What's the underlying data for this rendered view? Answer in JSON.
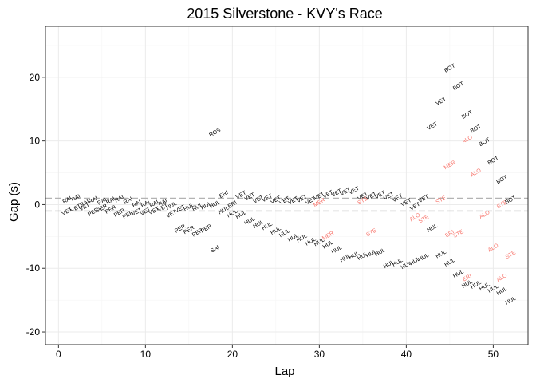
{
  "chart_data": {
    "type": "scatter",
    "title": "2015 Silverstone - KVY's Race",
    "xlabel": "Lap",
    "ylabel": "Gap (s)",
    "xlim": [
      -1.5,
      54
    ],
    "ylim": [
      -22,
      28
    ],
    "x_ticks": [
      0,
      10,
      20,
      30,
      40,
      50
    ],
    "y_ticks": [
      -20,
      -10,
      0,
      10,
      20
    ],
    "reference_lines": [
      1,
      -1
    ],
    "grid": true,
    "label_rotation": -30,
    "colors": {
      "normal": "#000000",
      "highlight": "#F8766D",
      "refline": "#b3b3b3",
      "grid_major": "#ebebeb",
      "grid_minor": "#f5f5f5",
      "panel_border": "#333333"
    },
    "points": [
      {
        "lap": 1,
        "gap": 0.7,
        "driver": "RAI",
        "highlight": false
      },
      {
        "lap": 1,
        "gap": -1.1,
        "driver": "VET",
        "highlight": false
      },
      {
        "lap": 2,
        "gap": 1.0,
        "driver": "RAI",
        "highlight": false
      },
      {
        "lap": 2,
        "gap": -0.6,
        "driver": "VET",
        "highlight": false
      },
      {
        "lap": 3,
        "gap": 0.2,
        "driver": "RAI",
        "highlight": false
      },
      {
        "lap": 3,
        "gap": -0.4,
        "driver": "VET",
        "highlight": false
      },
      {
        "lap": 4,
        "gap": 0.7,
        "driver": "RAI",
        "highlight": false
      },
      {
        "lap": 4,
        "gap": -1.2,
        "driver": "PER",
        "highlight": false
      },
      {
        "lap": 5,
        "gap": 0.5,
        "driver": "RAI",
        "highlight": false
      },
      {
        "lap": 5,
        "gap": -0.6,
        "driver": "PER",
        "highlight": false
      },
      {
        "lap": 6,
        "gap": 0.6,
        "driver": "RAI",
        "highlight": false
      },
      {
        "lap": 6,
        "gap": -0.8,
        "driver": "PER",
        "highlight": false
      },
      {
        "lap": 7,
        "gap": 0.9,
        "driver": "RAI",
        "highlight": false
      },
      {
        "lap": 7,
        "gap": -1.3,
        "driver": "PER",
        "highlight": false
      },
      {
        "lap": 8,
        "gap": 0.6,
        "driver": "RAI",
        "highlight": false
      },
      {
        "lap": 8,
        "gap": -1.6,
        "driver": "PER",
        "highlight": false
      },
      {
        "lap": 9,
        "gap": 0.1,
        "driver": "RAI",
        "highlight": false
      },
      {
        "lap": 9,
        "gap": -1.2,
        "driver": "VET",
        "highlight": false
      },
      {
        "lap": 10,
        "gap": 0.1,
        "driver": "RAI",
        "highlight": false
      },
      {
        "lap": 10,
        "gap": -1.1,
        "driver": "VET",
        "highlight": false
      },
      {
        "lap": 11,
        "gap": 0.1,
        "driver": "RAI",
        "highlight": false
      },
      {
        "lap": 11,
        "gap": -1.0,
        "driver": "VET",
        "highlight": false
      },
      {
        "lap": 12,
        "gap": 0.3,
        "driver": "RAI",
        "highlight": false
      },
      {
        "lap": 12,
        "gap": -0.5,
        "driver": "VET",
        "highlight": false
      },
      {
        "lap": 13,
        "gap": -0.2,
        "driver": "HUL",
        "highlight": false
      },
      {
        "lap": 13,
        "gap": -1.5,
        "driver": "VET",
        "highlight": false
      },
      {
        "lap": 14,
        "gap": -0.7,
        "driver": "VET",
        "highlight": false
      },
      {
        "lap": 14,
        "gap": -3.8,
        "driver": "PER",
        "highlight": false
      },
      {
        "lap": 15,
        "gap": -0.4,
        "driver": "HUL",
        "highlight": false
      },
      {
        "lap": 15,
        "gap": -4.0,
        "driver": "PER",
        "highlight": false
      },
      {
        "lap": 16,
        "gap": -0.4,
        "driver": "HUL",
        "highlight": false
      },
      {
        "lap": 16,
        "gap": -4.4,
        "driver": "PER",
        "highlight": false
      },
      {
        "lap": 17,
        "gap": -0.2,
        "driver": "HUL",
        "highlight": false
      },
      {
        "lap": 17,
        "gap": -3.8,
        "driver": "PER",
        "highlight": false
      },
      {
        "lap": 18,
        "gap": 11.3,
        "driver": "ROS",
        "highlight": false
      },
      {
        "lap": 18,
        "gap": 0.0,
        "driver": "HUL",
        "highlight": false
      },
      {
        "lap": 18,
        "gap": -7.0,
        "driver": "SAI",
        "highlight": false
      },
      {
        "lap": 19,
        "gap": 1.6,
        "driver": "ERI",
        "highlight": false
      },
      {
        "lap": 19,
        "gap": -0.9,
        "driver": "HUL",
        "highlight": false
      },
      {
        "lap": 20,
        "gap": 0.0,
        "driver": "ERI",
        "highlight": false
      },
      {
        "lap": 20,
        "gap": -1.4,
        "driver": "HUL",
        "highlight": false
      },
      {
        "lap": 21,
        "gap": 1.5,
        "driver": "VET",
        "highlight": false
      },
      {
        "lap": 21,
        "gap": -1.6,
        "driver": "HUL",
        "highlight": false
      },
      {
        "lap": 22,
        "gap": 1.2,
        "driver": "VET",
        "highlight": false
      },
      {
        "lap": 22,
        "gap": -2.6,
        "driver": "HUL",
        "highlight": false
      },
      {
        "lap": 23,
        "gap": 0.8,
        "driver": "VET",
        "highlight": false
      },
      {
        "lap": 23,
        "gap": -3.1,
        "driver": "HUL",
        "highlight": false
      },
      {
        "lap": 24,
        "gap": 1.0,
        "driver": "VET",
        "highlight": false
      },
      {
        "lap": 24,
        "gap": -3.4,
        "driver": "HUL",
        "highlight": false
      },
      {
        "lap": 25,
        "gap": 0.7,
        "driver": "VET",
        "highlight": false
      },
      {
        "lap": 25,
        "gap": -4.1,
        "driver": "HUL",
        "highlight": false
      },
      {
        "lap": 26,
        "gap": 0.6,
        "driver": "VET",
        "highlight": false
      },
      {
        "lap": 26,
        "gap": -4.5,
        "driver": "HUL",
        "highlight": false
      },
      {
        "lap": 27,
        "gap": 0.6,
        "driver": "VET",
        "highlight": false
      },
      {
        "lap": 27,
        "gap": -5.2,
        "driver": "HUL",
        "highlight": false
      },
      {
        "lap": 28,
        "gap": 0.9,
        "driver": "VET",
        "highlight": false
      },
      {
        "lap": 28,
        "gap": -5.3,
        "driver": "HUL",
        "highlight": false
      },
      {
        "lap": 29,
        "gap": 0.6,
        "driver": "VET",
        "highlight": false
      },
      {
        "lap": 29,
        "gap": -5.8,
        "driver": "HUL",
        "highlight": false
      },
      {
        "lap": 30,
        "gap": 1.3,
        "driver": "VET",
        "highlight": false
      },
      {
        "lap": 30,
        "gap": 0.3,
        "driver": "MER",
        "highlight": true
      },
      {
        "lap": 30,
        "gap": -5.9,
        "driver": "HUL",
        "highlight": false
      },
      {
        "lap": 31,
        "gap": 1.6,
        "driver": "VET",
        "highlight": false
      },
      {
        "lap": 31,
        "gap": -4.9,
        "driver": "MER",
        "highlight": true
      },
      {
        "lap": 31,
        "gap": -6.3,
        "driver": "HUL",
        "highlight": false
      },
      {
        "lap": 32,
        "gap": 1.8,
        "driver": "VET",
        "highlight": false
      },
      {
        "lap": 32,
        "gap": -7.1,
        "driver": "HUL",
        "highlight": false
      },
      {
        "lap": 33,
        "gap": 2.0,
        "driver": "VET",
        "highlight": false
      },
      {
        "lap": 33,
        "gap": -8.4,
        "driver": "HUL",
        "highlight": false
      },
      {
        "lap": 34,
        "gap": 2.2,
        "driver": "VET",
        "highlight": false
      },
      {
        "lap": 34,
        "gap": -8.0,
        "driver": "HUL",
        "highlight": false
      },
      {
        "lap": 35,
        "gap": 1.3,
        "driver": "VET",
        "highlight": false
      },
      {
        "lap": 35,
        "gap": 0.6,
        "driver": "STE",
        "highlight": true
      },
      {
        "lap": 35,
        "gap": -8.1,
        "driver": "HUL",
        "highlight": false
      },
      {
        "lap": 36,
        "gap": 1.3,
        "driver": "VET",
        "highlight": false
      },
      {
        "lap": 36,
        "gap": -4.4,
        "driver": "STE",
        "highlight": true
      },
      {
        "lap": 36,
        "gap": -7.7,
        "driver": "HUL",
        "highlight": false
      },
      {
        "lap": 37,
        "gap": 1.5,
        "driver": "VET",
        "highlight": false
      },
      {
        "lap": 37,
        "gap": -7.5,
        "driver": "HUL",
        "highlight": false
      },
      {
        "lap": 38,
        "gap": 1.3,
        "driver": "VET",
        "highlight": false
      },
      {
        "lap": 38,
        "gap": -9.4,
        "driver": "HUL",
        "highlight": false
      },
      {
        "lap": 39,
        "gap": 1.0,
        "driver": "VET",
        "highlight": false
      },
      {
        "lap": 39,
        "gap": -9.1,
        "driver": "HUL",
        "highlight": false
      },
      {
        "lap": 40,
        "gap": 0.3,
        "driver": "VET",
        "highlight": false
      },
      {
        "lap": 40,
        "gap": -9.5,
        "driver": "HUL",
        "highlight": false
      },
      {
        "lap": 41,
        "gap": -0.3,
        "driver": "VET",
        "highlight": false
      },
      {
        "lap": 41,
        "gap": -2.0,
        "driver": "ALO",
        "highlight": true
      },
      {
        "lap": 41,
        "gap": -8.9,
        "driver": "HUL",
        "highlight": false
      },
      {
        "lap": 42,
        "gap": 0.9,
        "driver": "VET",
        "highlight": false
      },
      {
        "lap": 42,
        "gap": -2.3,
        "driver": "STE",
        "highlight": true
      },
      {
        "lap": 42,
        "gap": -8.3,
        "driver": "HUL",
        "highlight": false
      },
      {
        "lap": 43,
        "gap": 12.3,
        "driver": "VET",
        "highlight": false
      },
      {
        "lap": 43,
        "gap": -3.7,
        "driver": "HUL",
        "highlight": false
      },
      {
        "lap": 44,
        "gap": 16.2,
        "driver": "VET",
        "highlight": false
      },
      {
        "lap": 44,
        "gap": 0.7,
        "driver": "STE",
        "highlight": true
      },
      {
        "lap": 44,
        "gap": -7.8,
        "driver": "HUL",
        "highlight": false
      },
      {
        "lap": 45,
        "gap": 21.4,
        "driver": "BOT",
        "highlight": false
      },
      {
        "lap": 45,
        "gap": 6.2,
        "driver": "MER",
        "highlight": true
      },
      {
        "lap": 45,
        "gap": -4.6,
        "driver": "ERI",
        "highlight": true
      },
      {
        "lap": 45,
        "gap": -9.1,
        "driver": "HUL",
        "highlight": false
      },
      {
        "lap": 46,
        "gap": 18.6,
        "driver": "BOT",
        "highlight": false
      },
      {
        "lap": 46,
        "gap": -4.6,
        "driver": "STE",
        "highlight": true
      },
      {
        "lap": 46,
        "gap": -10.9,
        "driver": "HUL",
        "highlight": false
      },
      {
        "lap": 47,
        "gap": 14.1,
        "driver": "BOT",
        "highlight": false
      },
      {
        "lap": 47,
        "gap": 10.2,
        "driver": "ALO",
        "highlight": true
      },
      {
        "lap": 47,
        "gap": -11.5,
        "driver": "ERI",
        "highlight": true
      },
      {
        "lap": 47,
        "gap": -12.5,
        "driver": "HUL",
        "highlight": false
      },
      {
        "lap": 48,
        "gap": 11.9,
        "driver": "BOT",
        "highlight": false
      },
      {
        "lap": 48,
        "gap": 5.0,
        "driver": "ALO",
        "highlight": true
      },
      {
        "lap": 48,
        "gap": -12.6,
        "driver": "HUL",
        "highlight": false
      },
      {
        "lap": 49,
        "gap": 9.8,
        "driver": "BOT",
        "highlight": false
      },
      {
        "lap": 49,
        "gap": -1.6,
        "driver": "ALO",
        "highlight": true
      },
      {
        "lap": 49,
        "gap": -12.9,
        "driver": "HUL",
        "highlight": false
      },
      {
        "lap": 50,
        "gap": 6.9,
        "driver": "BOT",
        "highlight": false
      },
      {
        "lap": 50,
        "gap": -6.8,
        "driver": "ALO",
        "highlight": true
      },
      {
        "lap": 50,
        "gap": -13.2,
        "driver": "HUL",
        "highlight": false
      },
      {
        "lap": 51,
        "gap": 3.9,
        "driver": "BOT",
        "highlight": false
      },
      {
        "lap": 51,
        "gap": 0.0,
        "driver": "STE",
        "highlight": true
      },
      {
        "lap": 51,
        "gap": -11.5,
        "driver": "ALO",
        "highlight": true
      },
      {
        "lap": 51,
        "gap": -13.6,
        "driver": "HUL",
        "highlight": false
      },
      {
        "lap": 52,
        "gap": 0.7,
        "driver": "BOT",
        "highlight": false
      },
      {
        "lap": 52,
        "gap": -7.9,
        "driver": "STE",
        "highlight": true
      },
      {
        "lap": 52,
        "gap": -15.1,
        "driver": "HUL",
        "highlight": false
      }
    ]
  }
}
